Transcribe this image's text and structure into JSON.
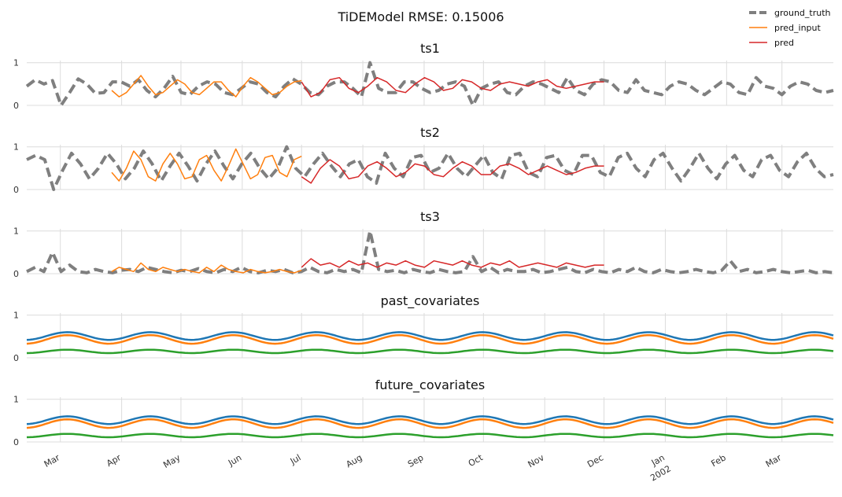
{
  "title": "TiDEModel RMSE: 0.15006",
  "legend": {
    "placement": "top-right",
    "entries": [
      {
        "label": "ground_truth",
        "color": "#7f7f7f",
        "style": "dashed"
      },
      {
        "label": "pred_input",
        "color": "#ff7f0e",
        "style": "solid"
      },
      {
        "label": "pred",
        "color": "#d62728",
        "style": "solid"
      }
    ]
  },
  "chart_data": {
    "type": "line",
    "grid": true,
    "x_range": [
      "2001-02-12",
      "2002-03-27"
    ],
    "x_ticks": [
      {
        "date": "2001-03-01",
        "label": "Mar"
      },
      {
        "date": "2001-04-01",
        "label": "Apr"
      },
      {
        "date": "2001-05-01",
        "label": "May"
      },
      {
        "date": "2001-06-01",
        "label": "Jun"
      },
      {
        "date": "2001-07-01",
        "label": "Jul"
      },
      {
        "date": "2001-08-01",
        "label": "Aug"
      },
      {
        "date": "2001-09-01",
        "label": "Sep"
      },
      {
        "date": "2001-10-01",
        "label": "Oct"
      },
      {
        "date": "2001-11-01",
        "label": "Nov"
      },
      {
        "date": "2001-12-01",
        "label": "Dec"
      },
      {
        "date": "2002-01-01",
        "label": "Jan",
        "sublabel": "2002"
      },
      {
        "date": "2002-02-01",
        "label": "Feb"
      },
      {
        "date": "2002-03-01",
        "label": "Mar"
      }
    ],
    "panels": [
      {
        "title": "ts1",
        "ylim": [
          0,
          1.05
        ],
        "yticks": [
          "0",
          "1"
        ],
        "series": [
          {
            "name": "ground_truth",
            "color": "#7f7f7f",
            "dashed": true,
            "x_start": "2001-02-12",
            "x_end": "2002-03-27",
            "values": [
              0.45,
              0.6,
              0.5,
              0.58,
              0.0,
              0.3,
              0.62,
              0.5,
              0.28,
              0.3,
              0.55,
              0.55,
              0.45,
              0.6,
              0.35,
              0.2,
              0.4,
              0.68,
              0.3,
              0.25,
              0.45,
              0.55,
              0.5,
              0.3,
              0.25,
              0.4,
              0.55,
              0.5,
              0.3,
              0.2,
              0.45,
              0.62,
              0.5,
              0.3,
              0.25,
              0.45,
              0.55,
              0.55,
              0.4,
              0.2,
              1.0,
              0.4,
              0.3,
              0.3,
              0.55,
              0.55,
              0.4,
              0.3,
              0.35,
              0.5,
              0.55,
              0.45,
              0.0,
              0.4,
              0.5,
              0.55,
              0.3,
              0.25,
              0.45,
              0.55,
              0.5,
              0.4,
              0.3,
              0.65,
              0.35,
              0.25,
              0.5,
              0.6,
              0.55,
              0.35,
              0.3,
              0.6,
              0.35,
              0.3,
              0.25,
              0.45,
              0.55,
              0.5,
              0.35,
              0.25,
              0.4,
              0.55,
              0.5,
              0.3,
              0.25,
              0.65,
              0.45,
              0.4,
              0.25,
              0.45,
              0.55,
              0.5,
              0.35,
              0.3,
              0.35
            ]
          },
          {
            "name": "pred_input",
            "color": "#ff7f0e",
            "dashed": false,
            "x_start": "2001-03-27",
            "x_end": "2001-07-01",
            "values": [
              0.35,
              0.2,
              0.3,
              0.5,
              0.7,
              0.45,
              0.25,
              0.3,
              0.45,
              0.6,
              0.5,
              0.3,
              0.25,
              0.4,
              0.55,
              0.55,
              0.35,
              0.2,
              0.45,
              0.65,
              0.55,
              0.4,
              0.25,
              0.3,
              0.45,
              0.55,
              0.58
            ]
          },
          {
            "name": "pred",
            "color": "#d62728",
            "dashed": false,
            "x_start": "2001-07-01",
            "x_end": "2001-12-01",
            "values": [
              0.55,
              0.2,
              0.3,
              0.6,
              0.65,
              0.4,
              0.3,
              0.45,
              0.65,
              0.55,
              0.35,
              0.3,
              0.5,
              0.65,
              0.55,
              0.35,
              0.4,
              0.6,
              0.55,
              0.4,
              0.35,
              0.5,
              0.55,
              0.5,
              0.45,
              0.55,
              0.6,
              0.45,
              0.4,
              0.45,
              0.5,
              0.55,
              0.55
            ]
          }
        ]
      },
      {
        "title": "ts2",
        "ylim": [
          0,
          1.05
        ],
        "yticks": [
          "0",
          "1"
        ],
        "series": [
          {
            "name": "ground_truth",
            "color": "#7f7f7f",
            "dashed": true,
            "x_start": "2001-02-12",
            "x_end": "2002-03-27",
            "values": [
              0.7,
              0.8,
              0.7,
              0.0,
              0.45,
              0.85,
              0.6,
              0.25,
              0.5,
              0.85,
              0.6,
              0.25,
              0.5,
              0.9,
              0.6,
              0.2,
              0.55,
              0.85,
              0.55,
              0.2,
              0.6,
              0.9,
              0.55,
              0.25,
              0.6,
              0.85,
              0.5,
              0.25,
              0.5,
              1.0,
              0.5,
              0.3,
              0.6,
              0.85,
              0.55,
              0.3,
              0.6,
              0.7,
              0.3,
              0.15,
              0.85,
              0.5,
              0.3,
              0.75,
              0.8,
              0.4,
              0.5,
              0.85,
              0.5,
              0.3,
              0.55,
              0.8,
              0.4,
              0.25,
              0.8,
              0.85,
              0.4,
              0.3,
              0.75,
              0.8,
              0.45,
              0.35,
              0.8,
              0.8,
              0.4,
              0.3,
              0.75,
              0.85,
              0.5,
              0.3,
              0.7,
              0.85,
              0.5,
              0.2,
              0.5,
              0.85,
              0.5,
              0.25,
              0.6,
              0.8,
              0.45,
              0.3,
              0.7,
              0.8,
              0.45,
              0.3,
              0.65,
              0.85,
              0.5,
              0.3,
              0.35
            ]
          },
          {
            "name": "pred_input",
            "color": "#ff7f0e",
            "dashed": false,
            "x_start": "2001-03-27",
            "x_end": "2001-07-01",
            "values": [
              0.4,
              0.2,
              0.5,
              0.9,
              0.7,
              0.3,
              0.2,
              0.6,
              0.85,
              0.6,
              0.25,
              0.3,
              0.7,
              0.8,
              0.45,
              0.2,
              0.55,
              0.95,
              0.6,
              0.25,
              0.35,
              0.75,
              0.8,
              0.4,
              0.3,
              0.7,
              0.78
            ]
          },
          {
            "name": "pred",
            "color": "#d62728",
            "dashed": false,
            "x_start": "2001-07-01",
            "x_end": "2001-12-01",
            "values": [
              0.3,
              0.15,
              0.5,
              0.7,
              0.55,
              0.25,
              0.3,
              0.55,
              0.65,
              0.5,
              0.3,
              0.4,
              0.6,
              0.55,
              0.35,
              0.3,
              0.5,
              0.65,
              0.55,
              0.35,
              0.35,
              0.55,
              0.6,
              0.5,
              0.35,
              0.45,
              0.55,
              0.45,
              0.35,
              0.4,
              0.5,
              0.55,
              0.55
            ]
          }
        ]
      },
      {
        "title": "ts3",
        "ylim": [
          0,
          1.05
        ],
        "yticks": [
          "0",
          "1"
        ],
        "series": [
          {
            "name": "ground_truth",
            "color": "#7f7f7f",
            "dashed": true,
            "x_start": "2001-02-12",
            "x_end": "2002-03-27",
            "values": [
              0.05,
              0.15,
              0.05,
              0.5,
              0.05,
              0.2,
              0.05,
              0.02,
              0.1,
              0.05,
              0.02,
              0.08,
              0.1,
              0.05,
              0.15,
              0.1,
              0.05,
              0.02,
              0.08,
              0.05,
              0.12,
              0.05,
              0.02,
              0.1,
              0.05,
              0.15,
              0.05,
              0.02,
              0.08,
              0.05,
              0.1,
              0.02,
              0.05,
              0.15,
              0.05,
              0.02,
              0.1,
              0.05,
              0.1,
              0.02,
              1.0,
              0.1,
              0.05,
              0.08,
              0.02,
              0.1,
              0.05,
              0.02,
              0.1,
              0.05,
              0.02,
              0.05,
              0.4,
              0.05,
              0.15,
              0.02,
              0.1,
              0.05,
              0.05,
              0.1,
              0.02,
              0.05,
              0.1,
              0.15,
              0.05,
              0.02,
              0.1,
              0.05,
              0.02,
              0.1,
              0.05,
              0.15,
              0.05,
              0.02,
              0.1,
              0.05,
              0.02,
              0.05,
              0.1,
              0.05,
              0.02,
              0.08,
              0.3,
              0.05,
              0.1,
              0.02,
              0.05,
              0.1,
              0.05,
              0.02,
              0.05,
              0.08,
              0.02,
              0.05,
              0.02
            ]
          },
          {
            "name": "pred_input",
            "color": "#ff7f0e",
            "dashed": false,
            "x_start": "2001-03-27",
            "x_end": "2001-07-01",
            "values": [
              0.05,
              0.15,
              0.1,
              0.05,
              0.25,
              0.1,
              0.05,
              0.15,
              0.1,
              0.05,
              0.1,
              0.05,
              0.02,
              0.15,
              0.05,
              0.2,
              0.1,
              0.05,
              0.02,
              0.1,
              0.05,
              0.02,
              0.05,
              0.1,
              0.05,
              0.02,
              0.08
            ]
          },
          {
            "name": "pred",
            "color": "#d62728",
            "dashed": false,
            "x_start": "2001-07-01",
            "x_end": "2001-12-01",
            "values": [
              0.15,
              0.35,
              0.2,
              0.25,
              0.15,
              0.3,
              0.2,
              0.25,
              0.15,
              0.25,
              0.2,
              0.3,
              0.2,
              0.15,
              0.3,
              0.25,
              0.2,
              0.3,
              0.2,
              0.15,
              0.25,
              0.2,
              0.3,
              0.15,
              0.2,
              0.25,
              0.2,
              0.15,
              0.25,
              0.2,
              0.15,
              0.2,
              0.2
            ]
          }
        ]
      },
      {
        "title": "past_covariates",
        "ylim": [
          0,
          1.05
        ],
        "yticks": [
          "0",
          "1"
        ],
        "series": [
          {
            "name": "",
            "color": "#1f77b4",
            "dashed": false,
            "x_start": "2001-02-12",
            "x_end": "2002-03-27",
            "sine": {
              "mean": 0.51,
              "amp": 0.09,
              "period_days": 42,
              "phase_days": 10
            }
          },
          {
            "name": "",
            "color": "#ff7f0e",
            "dashed": false,
            "x_start": "2001-02-12",
            "x_end": "2002-03-27",
            "sine": {
              "mean": 0.43,
              "amp": 0.1,
              "period_days": 42,
              "phase_days": 10
            }
          },
          {
            "name": "",
            "color": "#2ca02c",
            "dashed": false,
            "x_start": "2001-02-12",
            "x_end": "2002-03-27",
            "sine": {
              "mean": 0.15,
              "amp": 0.04,
              "period_days": 42,
              "phase_days": 10
            }
          }
        ]
      },
      {
        "title": "future_covariates",
        "ylim": [
          0,
          1.05
        ],
        "yticks": [
          "0",
          "1"
        ],
        "series": [
          {
            "name": "",
            "color": "#1f77b4",
            "dashed": false,
            "x_start": "2001-02-12",
            "x_end": "2002-03-27",
            "sine": {
              "mean": 0.51,
              "amp": 0.09,
              "period_days": 42,
              "phase_days": 10
            }
          },
          {
            "name": "",
            "color": "#ff7f0e",
            "dashed": false,
            "x_start": "2001-02-12",
            "x_end": "2002-03-27",
            "sine": {
              "mean": 0.43,
              "amp": 0.1,
              "period_days": 42,
              "phase_days": 10
            }
          },
          {
            "name": "",
            "color": "#2ca02c",
            "dashed": false,
            "x_start": "2001-02-12",
            "x_end": "2002-03-27",
            "sine": {
              "mean": 0.15,
              "amp": 0.04,
              "period_days": 42,
              "phase_days": 10
            }
          }
        ]
      }
    ]
  }
}
